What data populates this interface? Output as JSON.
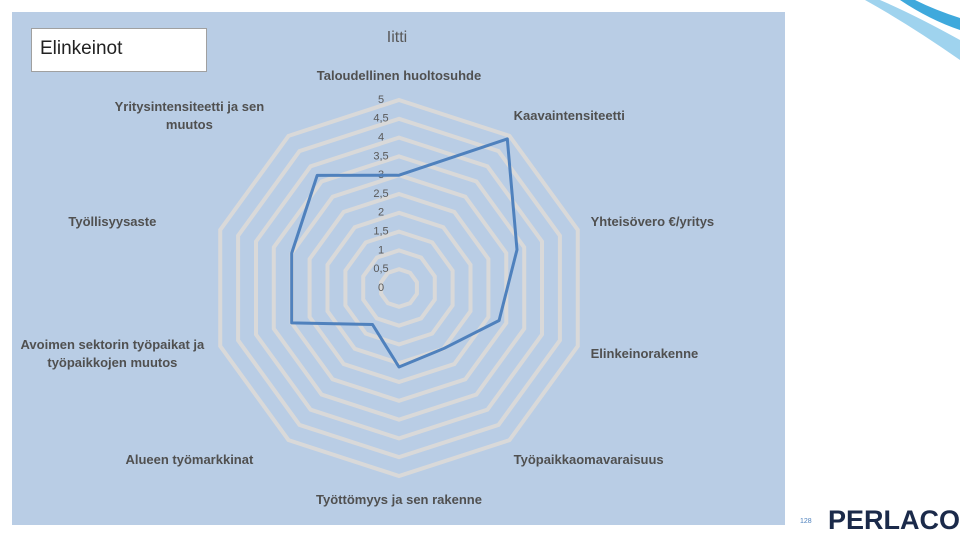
{
  "slide": {
    "box_title": "Elinkeinot",
    "page_number": "128",
    "logo": "PERLACON"
  },
  "chart_data": {
    "type": "radar",
    "title": "Iitti",
    "categories": [
      "Taloudellinen huoltosuhde",
      "Kaavaintensiteetti",
      "Yhteisövero €/yritys",
      "Elinkeinorakenne",
      "Työpaikkaomavaraisuus",
      "Työttömyys ja sen rakenne",
      "Alueen työmarkkinat",
      "Avoimen sektorin työpaikat ja työpaikkojen muutos",
      "Työllisyysaste",
      "Yritysintensiteetti ja sen muutos"
    ],
    "values": [
      3.0,
      4.9,
      3.3,
      2.8,
      2.0,
      2.1,
      1.2,
      3.0,
      3.0,
      3.7
    ],
    "color": "#4f81bd",
    "rlim": [
      0,
      5
    ],
    "rticks": [
      0,
      {
        "value": 0.5,
        "label": "0,5"
      },
      1,
      {
        "value": 1.5,
        "label": "1,5"
      },
      2,
      {
        "value": 2.5,
        "label": "2,5"
      },
      3,
      {
        "value": 3.5,
        "label": "3,5"
      },
      4,
      {
        "value": 4.5,
        "label": "4,5"
      },
      5
    ],
    "grid": true
  }
}
